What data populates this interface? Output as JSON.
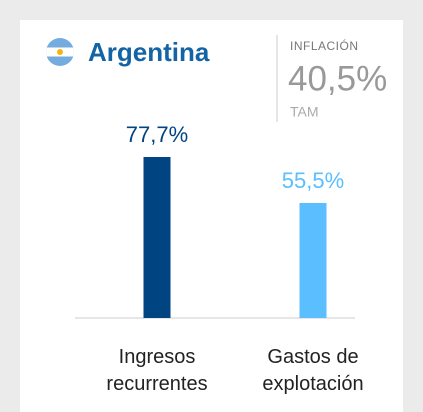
{
  "chart_data": {
    "type": "bar",
    "title": "Argentina",
    "inflation_label": "INFLACIÓN",
    "inflation_value": "40,5%",
    "inflation_note": "TAM",
    "categories": [
      "Ingresos recurrentes",
      "Gastos de explotación"
    ],
    "values": [
      77.7,
      55.5
    ],
    "value_labels": [
      "77,7%",
      "55,5%"
    ],
    "colors": [
      "#004481",
      "#5bbeff"
    ],
    "ylim": [
      0,
      77.7
    ]
  }
}
